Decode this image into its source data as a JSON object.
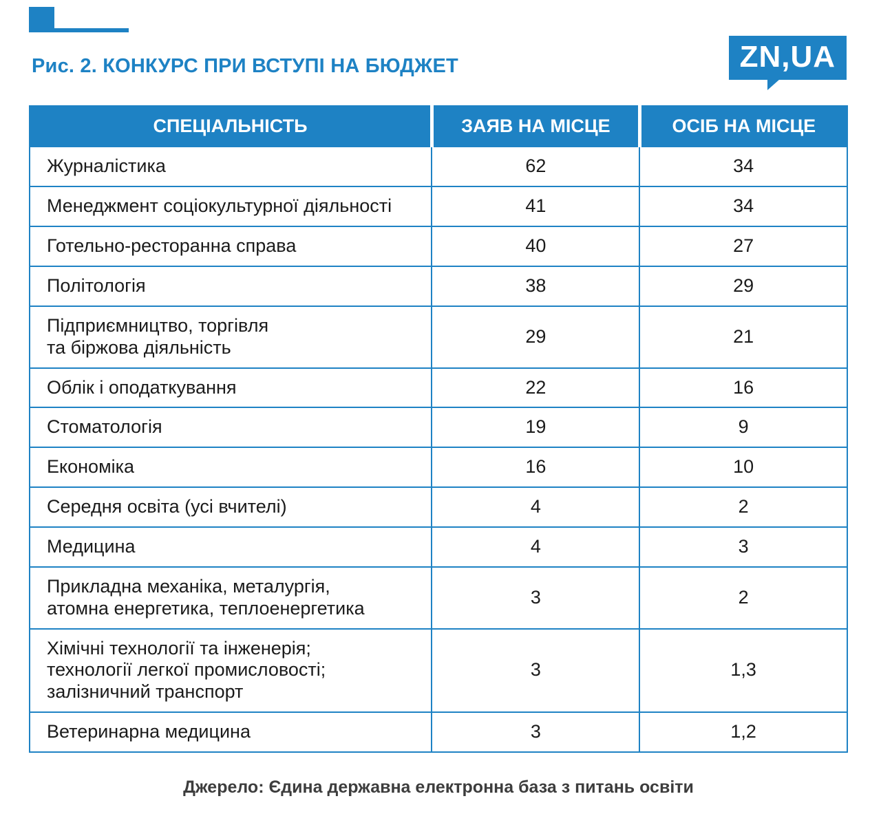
{
  "figure": {
    "title": "Рис. 2. КОНКУРС ПРИ  ВСТУПІ НА БЮДЖЕТ",
    "logo": "ZN,UA",
    "source": "Джерело: Єдина державна електронна база з питань освіти"
  },
  "colors": {
    "accent_blue": "#1e82c4",
    "header_text": "#ffffff",
    "body_text": "#1b1b1b"
  },
  "chart_data": {
    "type": "table",
    "title": "Рис. 2. КОНКУРС ПРИ ВСТУПІ НА БЮДЖЕТ",
    "columns": [
      "СПЕЦІАЛЬНІСТЬ",
      "ЗАЯВ НА МІСЦЕ",
      "ОСІБ НА МІСЦЕ"
    ],
    "rows": [
      {
        "specialty": "Журналістика",
        "apps": "62",
        "persons": "34"
      },
      {
        "specialty": "Менеджмент соціокультурної діяльності",
        "apps": "41",
        "persons": "34"
      },
      {
        "specialty": "Готельно-ресторанна справа",
        "apps": "40",
        "persons": "27"
      },
      {
        "specialty": "Політологія",
        "apps": "38",
        "persons": "29"
      },
      {
        "specialty": "Підприємництво, торгівля\nта біржова діяльність",
        "apps": "29",
        "persons": "21"
      },
      {
        "specialty": "Облік і оподаткування",
        "apps": "22",
        "persons": "16"
      },
      {
        "specialty": "Стоматологія",
        "apps": "19",
        "persons": "9"
      },
      {
        "specialty": "Економіка",
        "apps": "16",
        "persons": "10"
      },
      {
        "specialty": "Середня освіта (усі вчителі)",
        "apps": "4",
        "persons": "2"
      },
      {
        "specialty": "Медицина",
        "apps": "4",
        "persons": "3"
      },
      {
        "specialty": "Прикладна механіка,  металургія,\nатомна енергетика, теплоенергетика",
        "apps": "3",
        "persons": "2"
      },
      {
        "specialty": "Хімічні технології та інженерія;\nтехнології легкої промисловості;\nзалізничний транспорт",
        "apps": "3",
        "persons": "1,3"
      },
      {
        "specialty": "Ветеринарна медицина",
        "apps": "3",
        "persons": "1,2"
      }
    ],
    "source": "Джерело: Єдина державна електронна база з питань освіти",
    "legend": "none",
    "grid": "table borders"
  }
}
